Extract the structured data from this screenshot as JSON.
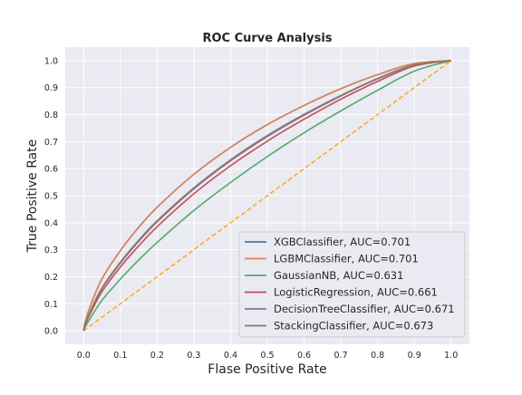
{
  "chart_data": {
    "type": "line",
    "title": "ROC Curve Analysis",
    "xlabel": "Flase Positive Rate",
    "ylabel": "True Positive Rate",
    "xlim": [
      -0.05,
      1.05
    ],
    "ylim": [
      -0.05,
      1.05
    ],
    "xticks": [
      "0.0",
      "0.1",
      "0.2",
      "0.3",
      "0.4",
      "0.5",
      "0.6",
      "0.7",
      "0.8",
      "0.9",
      "1.0"
    ],
    "yticks": [
      "0.0",
      "0.1",
      "0.2",
      "0.3",
      "0.4",
      "0.5",
      "0.6",
      "0.7",
      "0.8",
      "0.9",
      "1.0"
    ],
    "grid": true,
    "legend_position": "lower-right",
    "x": [
      0,
      0.005,
      0.02,
      0.05,
      0.1,
      0.15,
      0.2,
      0.3,
      0.4,
      0.5,
      0.6,
      0.7,
      0.8,
      0.9,
      1.0
    ],
    "series": [
      {
        "name": "XGBClassifier, AUC=0.701",
        "color": "#4c72b0",
        "values": [
          0,
          0.037,
          0.098,
          0.192,
          0.297,
          0.383,
          0.457,
          0.579,
          0.679,
          0.763,
          0.834,
          0.896,
          0.948,
          0.989,
          1.0
        ]
      },
      {
        "name": "LGBMClassifier, AUC=0.701",
        "color": "#dd8452",
        "values": [
          0,
          0.037,
          0.098,
          0.192,
          0.297,
          0.383,
          0.457,
          0.579,
          0.679,
          0.763,
          0.834,
          0.896,
          0.948,
          0.989,
          1.0
        ]
      },
      {
        "name": "GaussianNB, AUC=0.631",
        "color": "#55a868",
        "values": [
          0,
          0.016,
          0.05,
          0.113,
          0.191,
          0.262,
          0.327,
          0.445,
          0.549,
          0.645,
          0.733,
          0.814,
          0.89,
          0.961,
          1.0
        ]
      },
      {
        "name": "LogisticRegression, AUC=0.661",
        "color": "#c44e52",
        "values": [
          0,
          0.024,
          0.069,
          0.145,
          0.236,
          0.314,
          0.385,
          0.507,
          0.611,
          0.702,
          0.783,
          0.857,
          0.923,
          0.98,
          1.0
        ]
      },
      {
        "name": "DecisionTreeClassifier, AUC=0.671",
        "color": "#8172b3",
        "values": [
          0,
          0.027,
          0.076,
          0.156,
          0.25,
          0.331,
          0.403,
          0.525,
          0.629,
          0.719,
          0.798,
          0.869,
          0.932,
          0.983,
          1.0
        ]
      },
      {
        "name": "StackingClassifier, AUC=0.673",
        "color": "#937860",
        "values": [
          0,
          0.028,
          0.078,
          0.159,
          0.254,
          0.335,
          0.407,
          0.529,
          0.633,
          0.723,
          0.801,
          0.871,
          0.934,
          0.984,
          1.0
        ]
      }
    ],
    "reference_line": {
      "color": "#ffa500",
      "x": [
        0,
        1
      ],
      "values": [
        0,
        1
      ]
    }
  }
}
